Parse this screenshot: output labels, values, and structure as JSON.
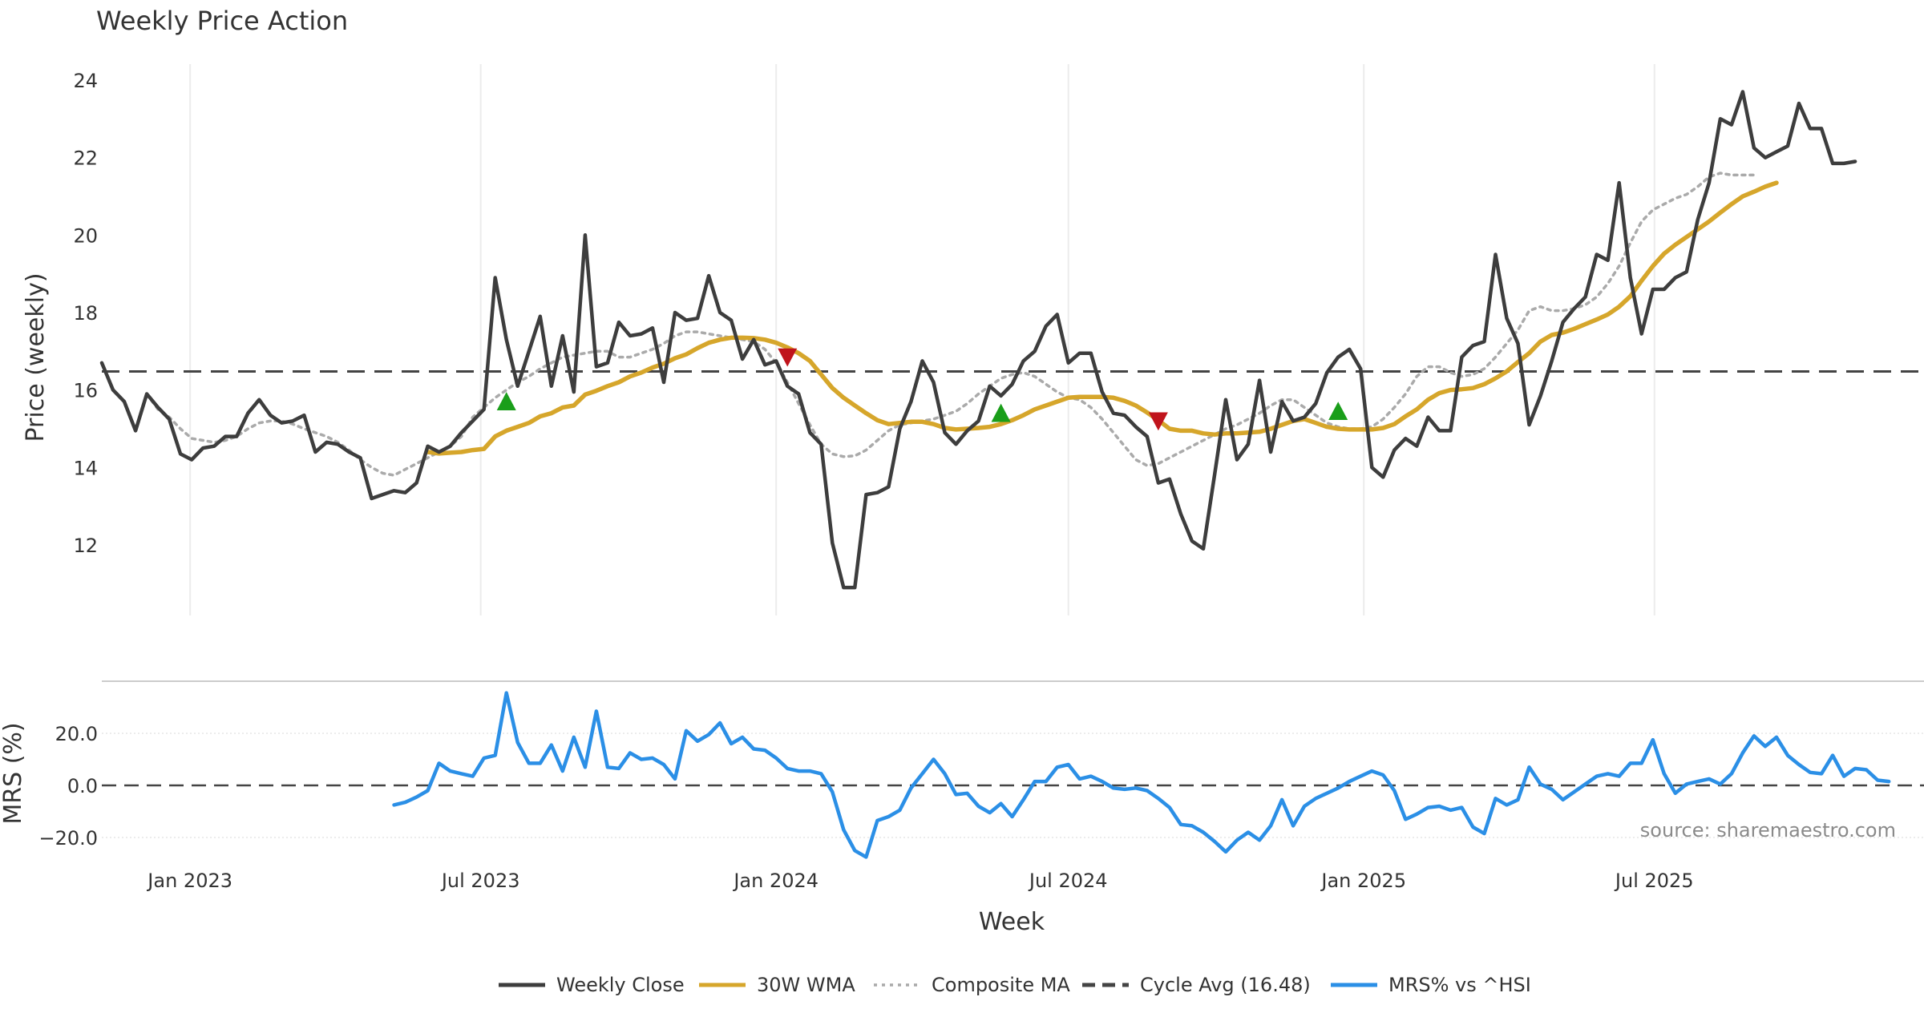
{
  "chart_data": [
    {
      "type": "line",
      "title": "Weekly Price Action",
      "ylabel": "Price (weekly)",
      "xlabel": "",
      "ylim": [
        10.4,
        24.6
      ],
      "yticks": [
        12,
        14,
        16,
        18,
        20,
        22,
        24
      ],
      "x_start": "2022-11-07",
      "x_step_days": 7,
      "series": [
        {
          "name": "Weekly Close",
          "color": "#3d3d3d",
          "values": [
            16.7,
            16.0,
            15.7,
            14.95,
            15.9,
            15.55,
            15.25,
            14.35,
            14.2,
            14.5,
            14.55,
            14.8,
            14.8,
            15.4,
            15.75,
            15.35,
            15.15,
            15.2,
            15.35,
            14.4,
            14.65,
            14.6,
            14.4,
            14.25,
            13.2,
            13.3,
            13.4,
            13.35,
            13.6,
            14.55,
            14.4,
            14.55,
            14.9,
            15.2,
            15.5,
            18.9,
            17.3,
            16.1,
            17.0,
            17.9,
            16.1,
            17.4,
            15.95,
            20.0,
            16.6,
            16.7,
            17.75,
            17.4,
            17.45,
            17.6,
            16.2,
            18.0,
            17.8,
            17.85,
            18.95,
            18.0,
            17.8,
            16.8,
            17.3,
            16.65,
            16.75,
            16.1,
            15.9,
            14.9,
            14.6,
            12.05,
            10.9,
            10.9,
            13.3,
            13.35,
            13.5,
            15.0,
            15.7,
            16.75,
            16.2,
            14.9,
            14.6,
            14.95,
            15.2,
            16.1,
            15.85,
            16.15,
            16.75,
            17.0,
            17.65,
            17.95,
            16.7,
            16.95,
            16.95,
            15.95,
            15.4,
            15.35,
            15.05,
            14.8,
            13.6,
            13.7,
            12.8,
            12.1,
            11.9,
            13.8,
            15.75,
            14.2,
            14.6,
            16.25,
            14.4,
            15.7,
            15.2,
            15.3,
            15.65,
            16.45,
            16.85,
            17.05,
            16.55,
            14.0,
            13.75,
            14.45,
            14.75,
            14.55,
            15.3,
            14.95,
            14.95,
            16.85,
            17.15,
            17.25,
            19.5,
            17.85,
            17.2,
            15.1,
            15.85,
            16.75,
            17.75,
            18.1,
            18.4,
            19.5,
            19.35,
            21.35,
            18.9,
            17.45,
            18.6,
            18.6,
            18.9,
            19.05,
            20.4,
            21.35,
            23.0,
            22.85,
            23.7,
            22.25,
            22.0,
            22.15,
            22.3,
            23.4,
            22.75,
            22.75,
            21.85,
            21.85,
            21.9
          ]
        },
        {
          "name": "30W WMA",
          "color": "#d6a62b",
          "start_index": 29,
          "values": [
            14.4,
            14.36,
            14.38,
            14.4,
            14.45,
            14.48,
            14.8,
            14.95,
            15.05,
            15.15,
            15.32,
            15.4,
            15.55,
            15.6,
            15.88,
            15.98,
            16.1,
            16.2,
            16.35,
            16.45,
            16.58,
            16.68,
            16.82,
            16.92,
            17.08,
            17.22,
            17.3,
            17.35,
            17.35,
            17.34,
            17.3,
            17.22,
            17.1,
            16.95,
            16.75,
            16.4,
            16.05,
            15.8,
            15.6,
            15.4,
            15.22,
            15.12,
            15.15,
            15.18,
            15.18,
            15.12,
            15.02,
            14.98,
            15.0,
            15.02,
            15.05,
            15.12,
            15.22,
            15.35,
            15.5,
            15.6,
            15.7,
            15.8,
            15.82,
            15.82,
            15.82,
            15.8,
            15.72,
            15.6,
            15.42,
            15.22,
            15.0,
            14.95,
            14.95,
            14.88,
            14.85,
            14.88,
            14.88,
            14.9,
            14.92,
            15.0,
            15.1,
            15.2,
            15.25,
            15.15,
            15.05,
            15.0,
            14.98,
            14.98,
            14.98,
            15.02,
            15.12,
            15.32,
            15.5,
            15.75,
            15.92,
            16.0,
            16.02,
            16.05,
            16.15,
            16.3,
            16.48,
            16.72,
            16.95,
            17.25,
            17.42,
            17.48,
            17.58,
            17.7,
            17.82,
            17.95,
            18.15,
            18.42,
            18.82,
            19.2,
            19.52,
            19.75,
            19.95,
            20.15,
            20.35,
            20.58,
            20.8,
            21.0,
            21.12,
            21.25,
            21.35
          ]
        },
        {
          "name": "Composite MA",
          "color": "#aaaaaa",
          "start_index": 4,
          "values": [
            15.9,
            15.5,
            15.3,
            15.0,
            14.75,
            14.7,
            14.65,
            14.7,
            14.8,
            15.0,
            15.15,
            15.2,
            15.2,
            15.12,
            15.0,
            14.9,
            14.8,
            14.65,
            14.45,
            14.2,
            14.0,
            13.85,
            13.8,
            13.95,
            14.1,
            14.25,
            14.4,
            14.55,
            14.8,
            15.3,
            15.55,
            15.8,
            16.0,
            16.2,
            16.35,
            16.55,
            16.7,
            16.85,
            16.9,
            16.95,
            17.0,
            17.0,
            16.85,
            16.85,
            16.95,
            17.05,
            17.2,
            17.4,
            17.5,
            17.5,
            17.45,
            17.4,
            17.35,
            17.3,
            17.25,
            17.05,
            16.7,
            16.2,
            15.65,
            15.1,
            14.6,
            14.35,
            14.28,
            14.3,
            14.45,
            14.7,
            14.95,
            15.1,
            15.15,
            15.2,
            15.25,
            15.35,
            15.45,
            15.65,
            15.9,
            16.1,
            16.3,
            16.4,
            16.45,
            16.35,
            16.15,
            15.95,
            15.8,
            15.75,
            15.55,
            15.25,
            14.9,
            14.55,
            14.2,
            14.05,
            14.1,
            14.25,
            14.4,
            14.55,
            14.7,
            14.85,
            15.0,
            15.1,
            15.25,
            15.4,
            15.6,
            15.75,
            15.75,
            15.55,
            15.35,
            15.15,
            15.05,
            15.0,
            15.0,
            15.05,
            15.25,
            15.55,
            15.9,
            16.35,
            16.6,
            16.6,
            16.45,
            16.35,
            16.4,
            16.55,
            16.85,
            17.2,
            17.55,
            18.05,
            18.15,
            18.05,
            18.05,
            18.1,
            18.2,
            18.4,
            18.75,
            19.2,
            19.8,
            20.35,
            20.65,
            20.8,
            20.95,
            21.05,
            21.25,
            21.5,
            21.6,
            21.55,
            21.55,
            21.55
          ]
        }
      ],
      "reference_line": {
        "name": "Cycle Avg (16.48)",
        "value": 16.48,
        "color": "#444444"
      },
      "markers": [
        {
          "type": "buy",
          "index": 36,
          "value": 15.7,
          "color": "#1a9e1a"
        },
        {
          "type": "sell",
          "index": 61,
          "value": 16.85,
          "color": "#c0141c"
        },
        {
          "type": "buy",
          "index": 80,
          "value": 15.4,
          "color": "#1a9e1a"
        },
        {
          "type": "sell",
          "index": 94,
          "value": 15.2,
          "color": "#c0141c"
        },
        {
          "type": "buy",
          "index": 110,
          "value": 15.45,
          "color": "#1a9e1a"
        }
      ]
    },
    {
      "type": "line",
      "title": "",
      "ylabel": "MRS (%)",
      "xlabel": "Week",
      "ylim": [
        -28,
        38
      ],
      "yticks": [
        -20,
        0,
        20
      ],
      "ytick_labels": [
        "−20.0",
        "0.0",
        "20.0"
      ],
      "x_tick_labels": [
        "Jan 2023",
        "Jul 2023",
        "Jan 2024",
        "Jul 2024",
        "Jan 2025",
        "Jul 2025"
      ],
      "x_tick_dates": [
        "2023-01-01",
        "2023-07-01",
        "2024-01-01",
        "2024-07-01",
        "2025-01-01",
        "2025-07-01"
      ],
      "series": [
        {
          "name": "MRS% vs ^HSI",
          "color": "#2b8fe6",
          "start_index": 26,
          "values": [
            -7.5,
            -6.5,
            -4.5,
            -2.0,
            8.5,
            5.5,
            4.5,
            3.5,
            10.5,
            11.5,
            35.5,
            16.5,
            8.5,
            8.5,
            15.5,
            5.5,
            18.5,
            7.0,
            28.5,
            7.0,
            6.5,
            12.5,
            10.0,
            10.5,
            8.0,
            2.5,
            21.0,
            17.0,
            19.5,
            24.0,
            16.0,
            18.5,
            14.0,
            13.5,
            10.5,
            6.5,
            5.5,
            5.5,
            4.5,
            -2.5,
            -17.0,
            -25.0,
            -27.5,
            -13.5,
            -12.0,
            -9.5,
            -1.0,
            4.5,
            10.0,
            4.5,
            -3.5,
            -3.0,
            -8.0,
            -10.5,
            -7.0,
            -12.0,
            -5.5,
            1.5,
            1.5,
            7.0,
            8.0,
            2.5,
            3.5,
            1.5,
            -1.0,
            -1.5,
            -1.0,
            -2.0,
            -5.0,
            -8.5,
            -15.0,
            -15.5,
            -18.0,
            -21.5,
            -25.5,
            -21.0,
            -18.0,
            -21.0,
            -15.5,
            -5.5,
            -15.5,
            -8.0,
            -5.0,
            -3.0,
            -1.0,
            1.5,
            3.5,
            5.5,
            4.0,
            -2.0,
            -13.0,
            -11.0,
            -8.5,
            -8.0,
            -9.5,
            -8.5,
            -16.0,
            -18.5,
            -5.0,
            -7.5,
            -5.5,
            7.0,
            0.5,
            -1.5,
            -5.5,
            -2.5,
            0.5,
            3.5,
            4.5,
            3.5,
            8.5,
            8.5,
            17.5,
            4.5,
            -3.0,
            0.5,
            1.5,
            2.5,
            0.5,
            4.5,
            12.5,
            19.0,
            15.0,
            18.5,
            11.5,
            8.0,
            5.0,
            4.5,
            11.5,
            3.5,
            6.5,
            6.0,
            2.0,
            1.5
          ]
        }
      ],
      "reference_line": {
        "value": 0,
        "color": "#444444"
      },
      "annotation": "source: sharemaestro.com"
    }
  ],
  "legend": [
    {
      "label": "Weekly Close",
      "color": "#3d3d3d",
      "style": "solid"
    },
    {
      "label": "30W WMA",
      "color": "#d6a62b",
      "style": "solid"
    },
    {
      "label": "Composite MA",
      "color": "#aaaaaa",
      "style": "dotted"
    },
    {
      "label": "Cycle Avg (16.48)",
      "color": "#444444",
      "style": "dashed"
    },
    {
      "label": "MRS% vs ^HSI",
      "color": "#2b8fe6",
      "style": "solid"
    }
  ]
}
